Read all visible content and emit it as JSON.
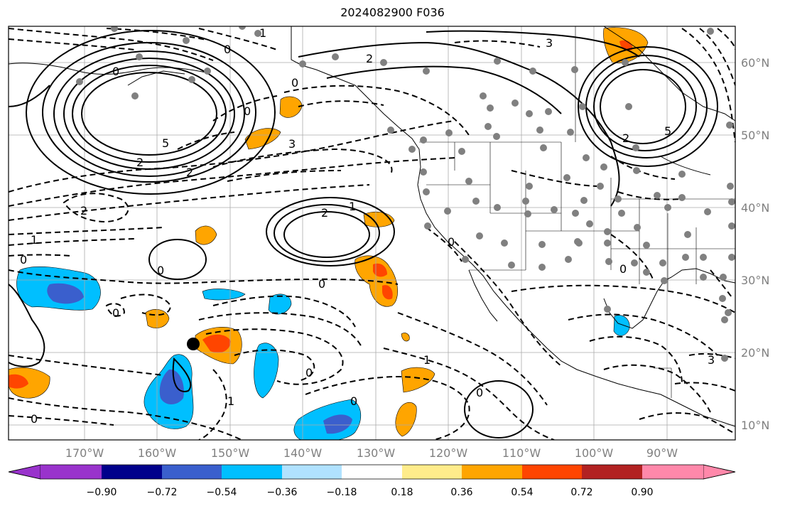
{
  "title": "2024082900 F036",
  "lon_ticks": [
    "170°W",
    "160°W",
    "150°W",
    "140°W",
    "130°W",
    "120°W",
    "110°W",
    "100°W",
    "90°W"
  ],
  "lat_ticks": [
    "60°N",
    "50°N",
    "40°N",
    "30°N",
    "20°N",
    "10°N"
  ],
  "colorbar": {
    "colors": [
      "#9933cc",
      "#00008b",
      "#3a5fcd",
      "#00bfff",
      "#b0e2ff",
      "#ffffff",
      "#ffec8b",
      "#ffa500",
      "#ff4500",
      "#b22222",
      "#ff88aa"
    ],
    "tick_labels": [
      "−0.90",
      "−0.72",
      "−0.54",
      "−0.36",
      "−0.18",
      "0.18",
      "0.36",
      "0.54",
      "0.72",
      "0.90"
    ]
  },
  "contour_labels": [
    "1",
    "0",
    "2",
    "3",
    "0",
    "0",
    "5",
    "2",
    "2",
    "3",
    "2",
    "0",
    "1",
    "0",
    "0",
    "2",
    "1",
    "0",
    "0",
    "0",
    "0",
    "1",
    "0",
    "0",
    "0",
    "1",
    "3",
    "5",
    "2",
    "0"
  ]
}
